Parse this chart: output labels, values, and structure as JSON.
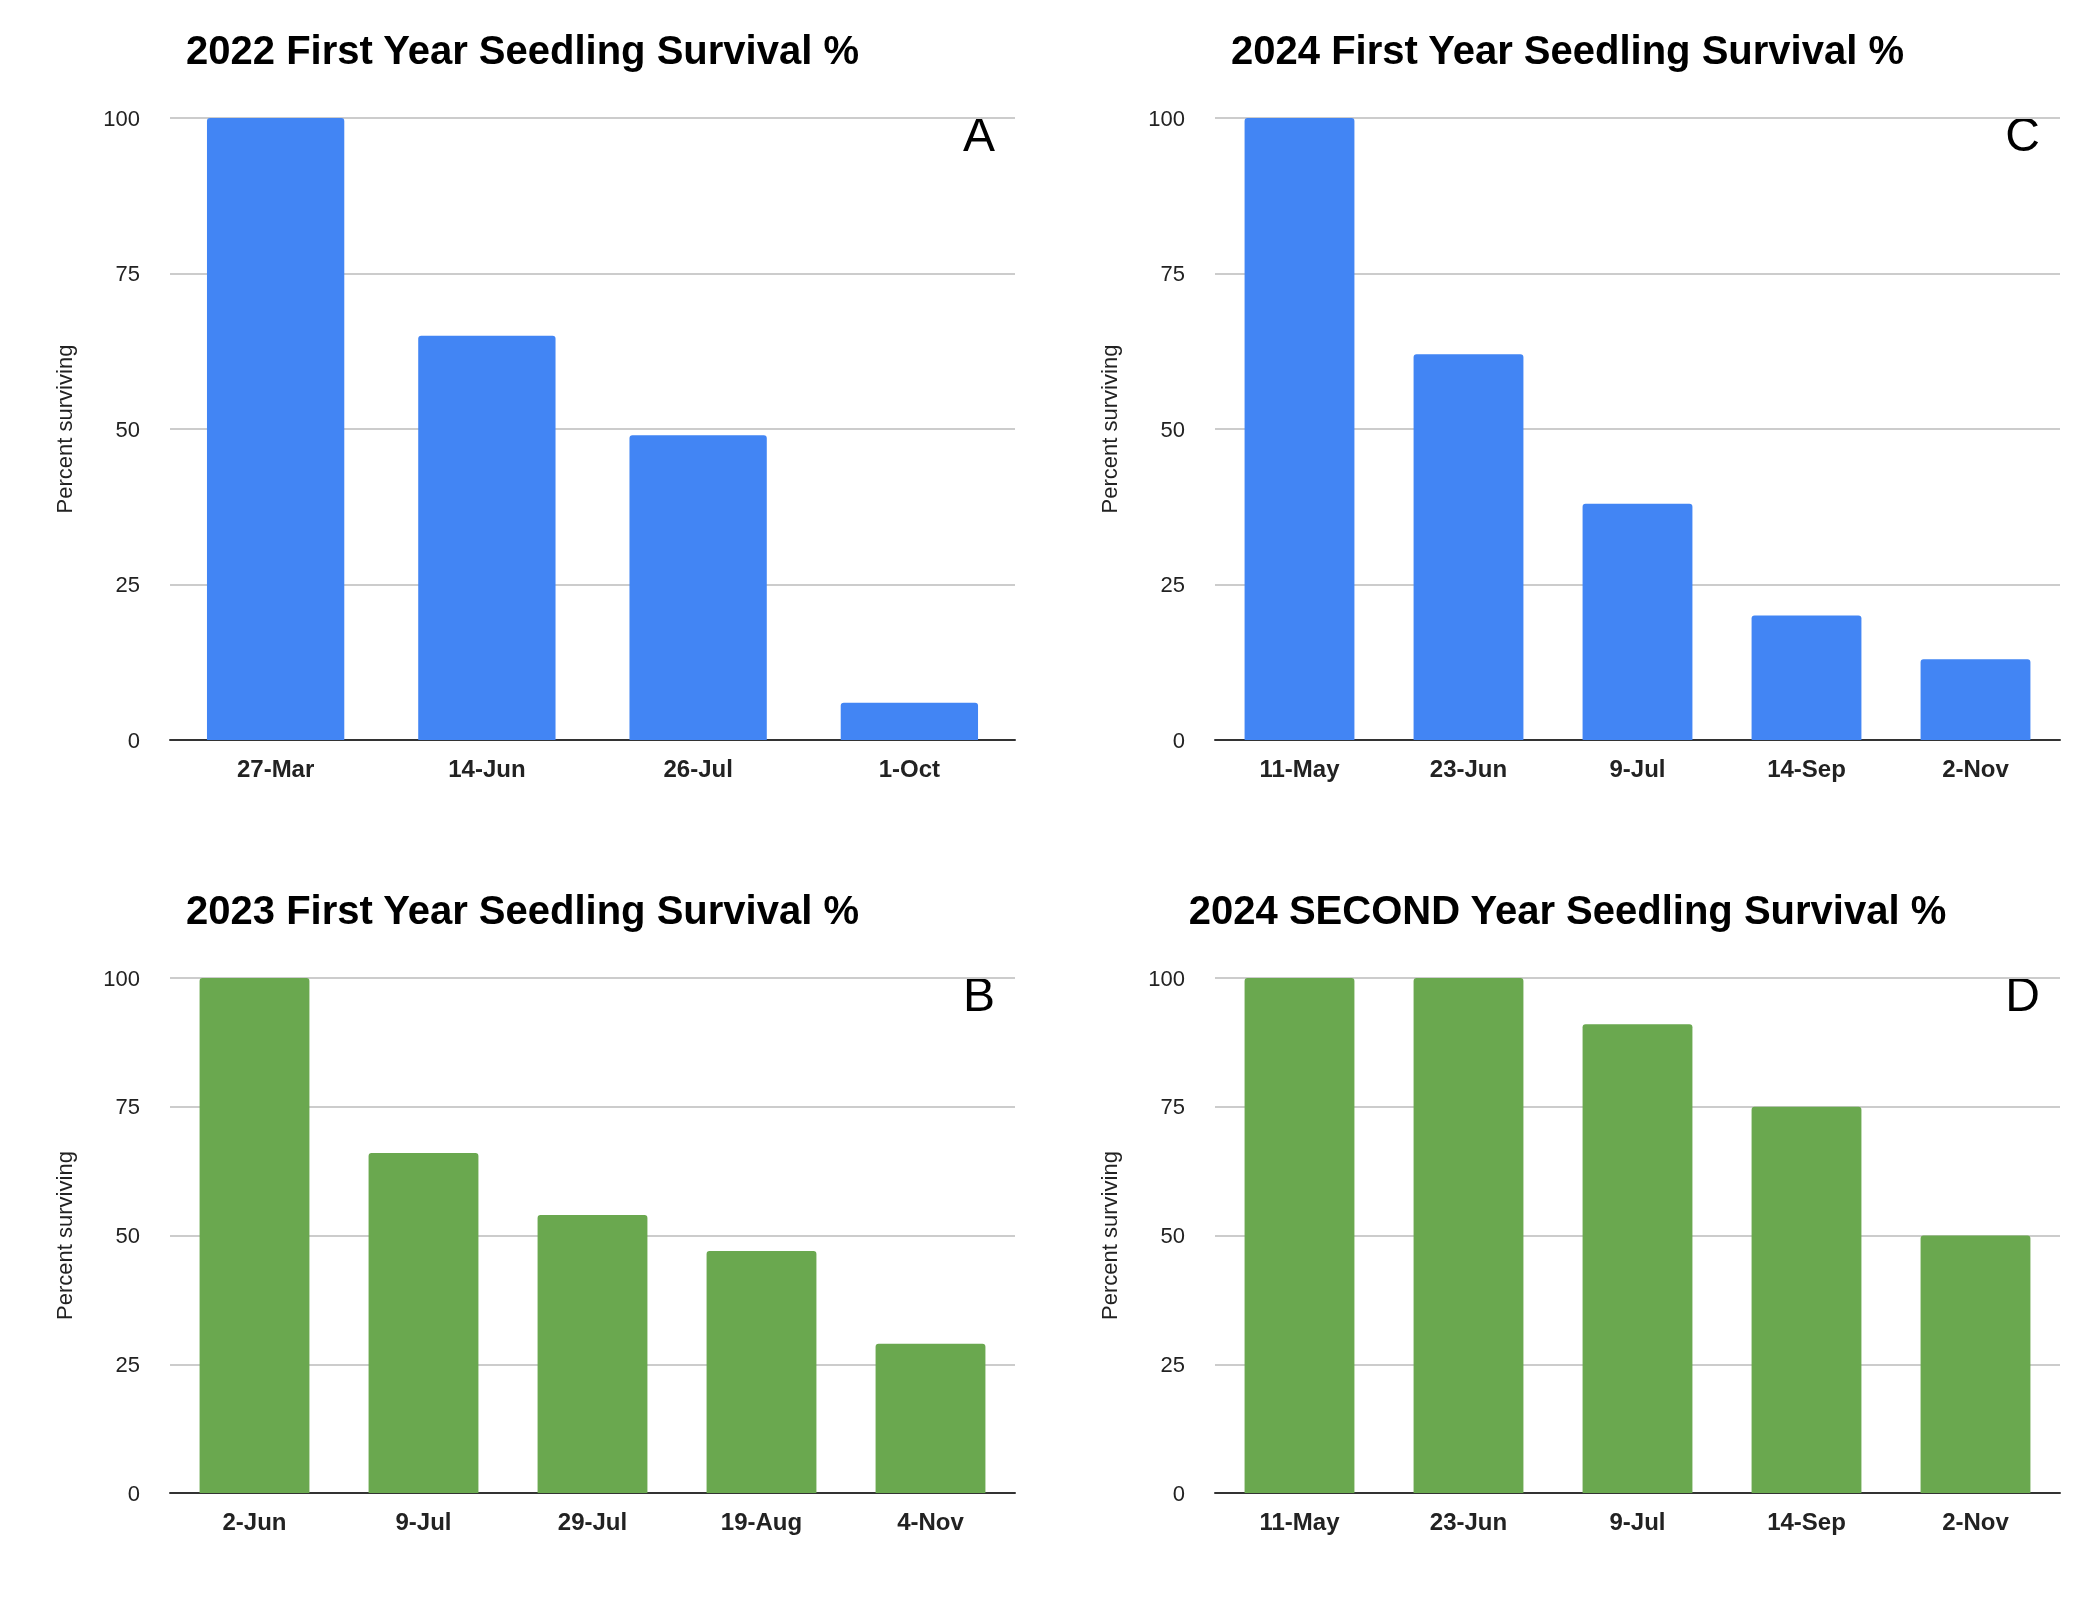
{
  "chart_data": [
    {
      "type": "bar",
      "title": "2022 First Year Seedling Survival %",
      "ylabel": "Percent surviving",
      "categories": [
        "27-Mar",
        "14-Jun",
        "26-Jul",
        "1-Oct"
      ],
      "values": [
        100,
        65,
        49,
        6
      ],
      "color": "#4285f4",
      "ylim": [
        0,
        100
      ],
      "yticks": [
        0,
        25,
        50,
        75,
        100
      ],
      "grid": "y",
      "annotations": [
        "A"
      ]
    },
    {
      "type": "bar",
      "title": "2024 First Year Seedling Survival %",
      "ylabel": "Percent surviving",
      "categories": [
        "11-May",
        "23-Jun",
        "9-Jul",
        "14-Sep",
        "2-Nov"
      ],
      "values": [
        100,
        62,
        38,
        20,
        13
      ],
      "color": "#4285f4",
      "ylim": [
        0,
        100
      ],
      "yticks": [
        0,
        25,
        50,
        75,
        100
      ],
      "grid": "y",
      "annotations": [
        "C"
      ]
    },
    {
      "type": "bar",
      "title": "2023 First Year Seedling Survival %",
      "ylabel": "Percent surviving",
      "categories": [
        "2-Jun",
        "9-Jul",
        "29-Jul",
        "19-Aug",
        "4-Nov"
      ],
      "values": [
        100,
        66,
        54,
        47,
        29
      ],
      "color": "#6aa84f",
      "ylim": [
        0,
        100
      ],
      "yticks": [
        0,
        25,
        50,
        75,
        100
      ],
      "grid": "y",
      "annotations": [
        "B"
      ]
    },
    {
      "type": "bar",
      "title": "2024 SECOND Year Seedling Survival %",
      "ylabel": "Percent surviving",
      "categories": [
        "11-May",
        "23-Jun",
        "9-Jul",
        "14-Sep",
        "2-Nov"
      ],
      "values": [
        100,
        100,
        91,
        75,
        50
      ],
      "color": "#6aa84f",
      "ylim": [
        0,
        100
      ],
      "yticks": [
        0,
        25,
        50,
        75,
        100
      ],
      "grid": "y",
      "annotations": [
        "D"
      ]
    }
  ]
}
